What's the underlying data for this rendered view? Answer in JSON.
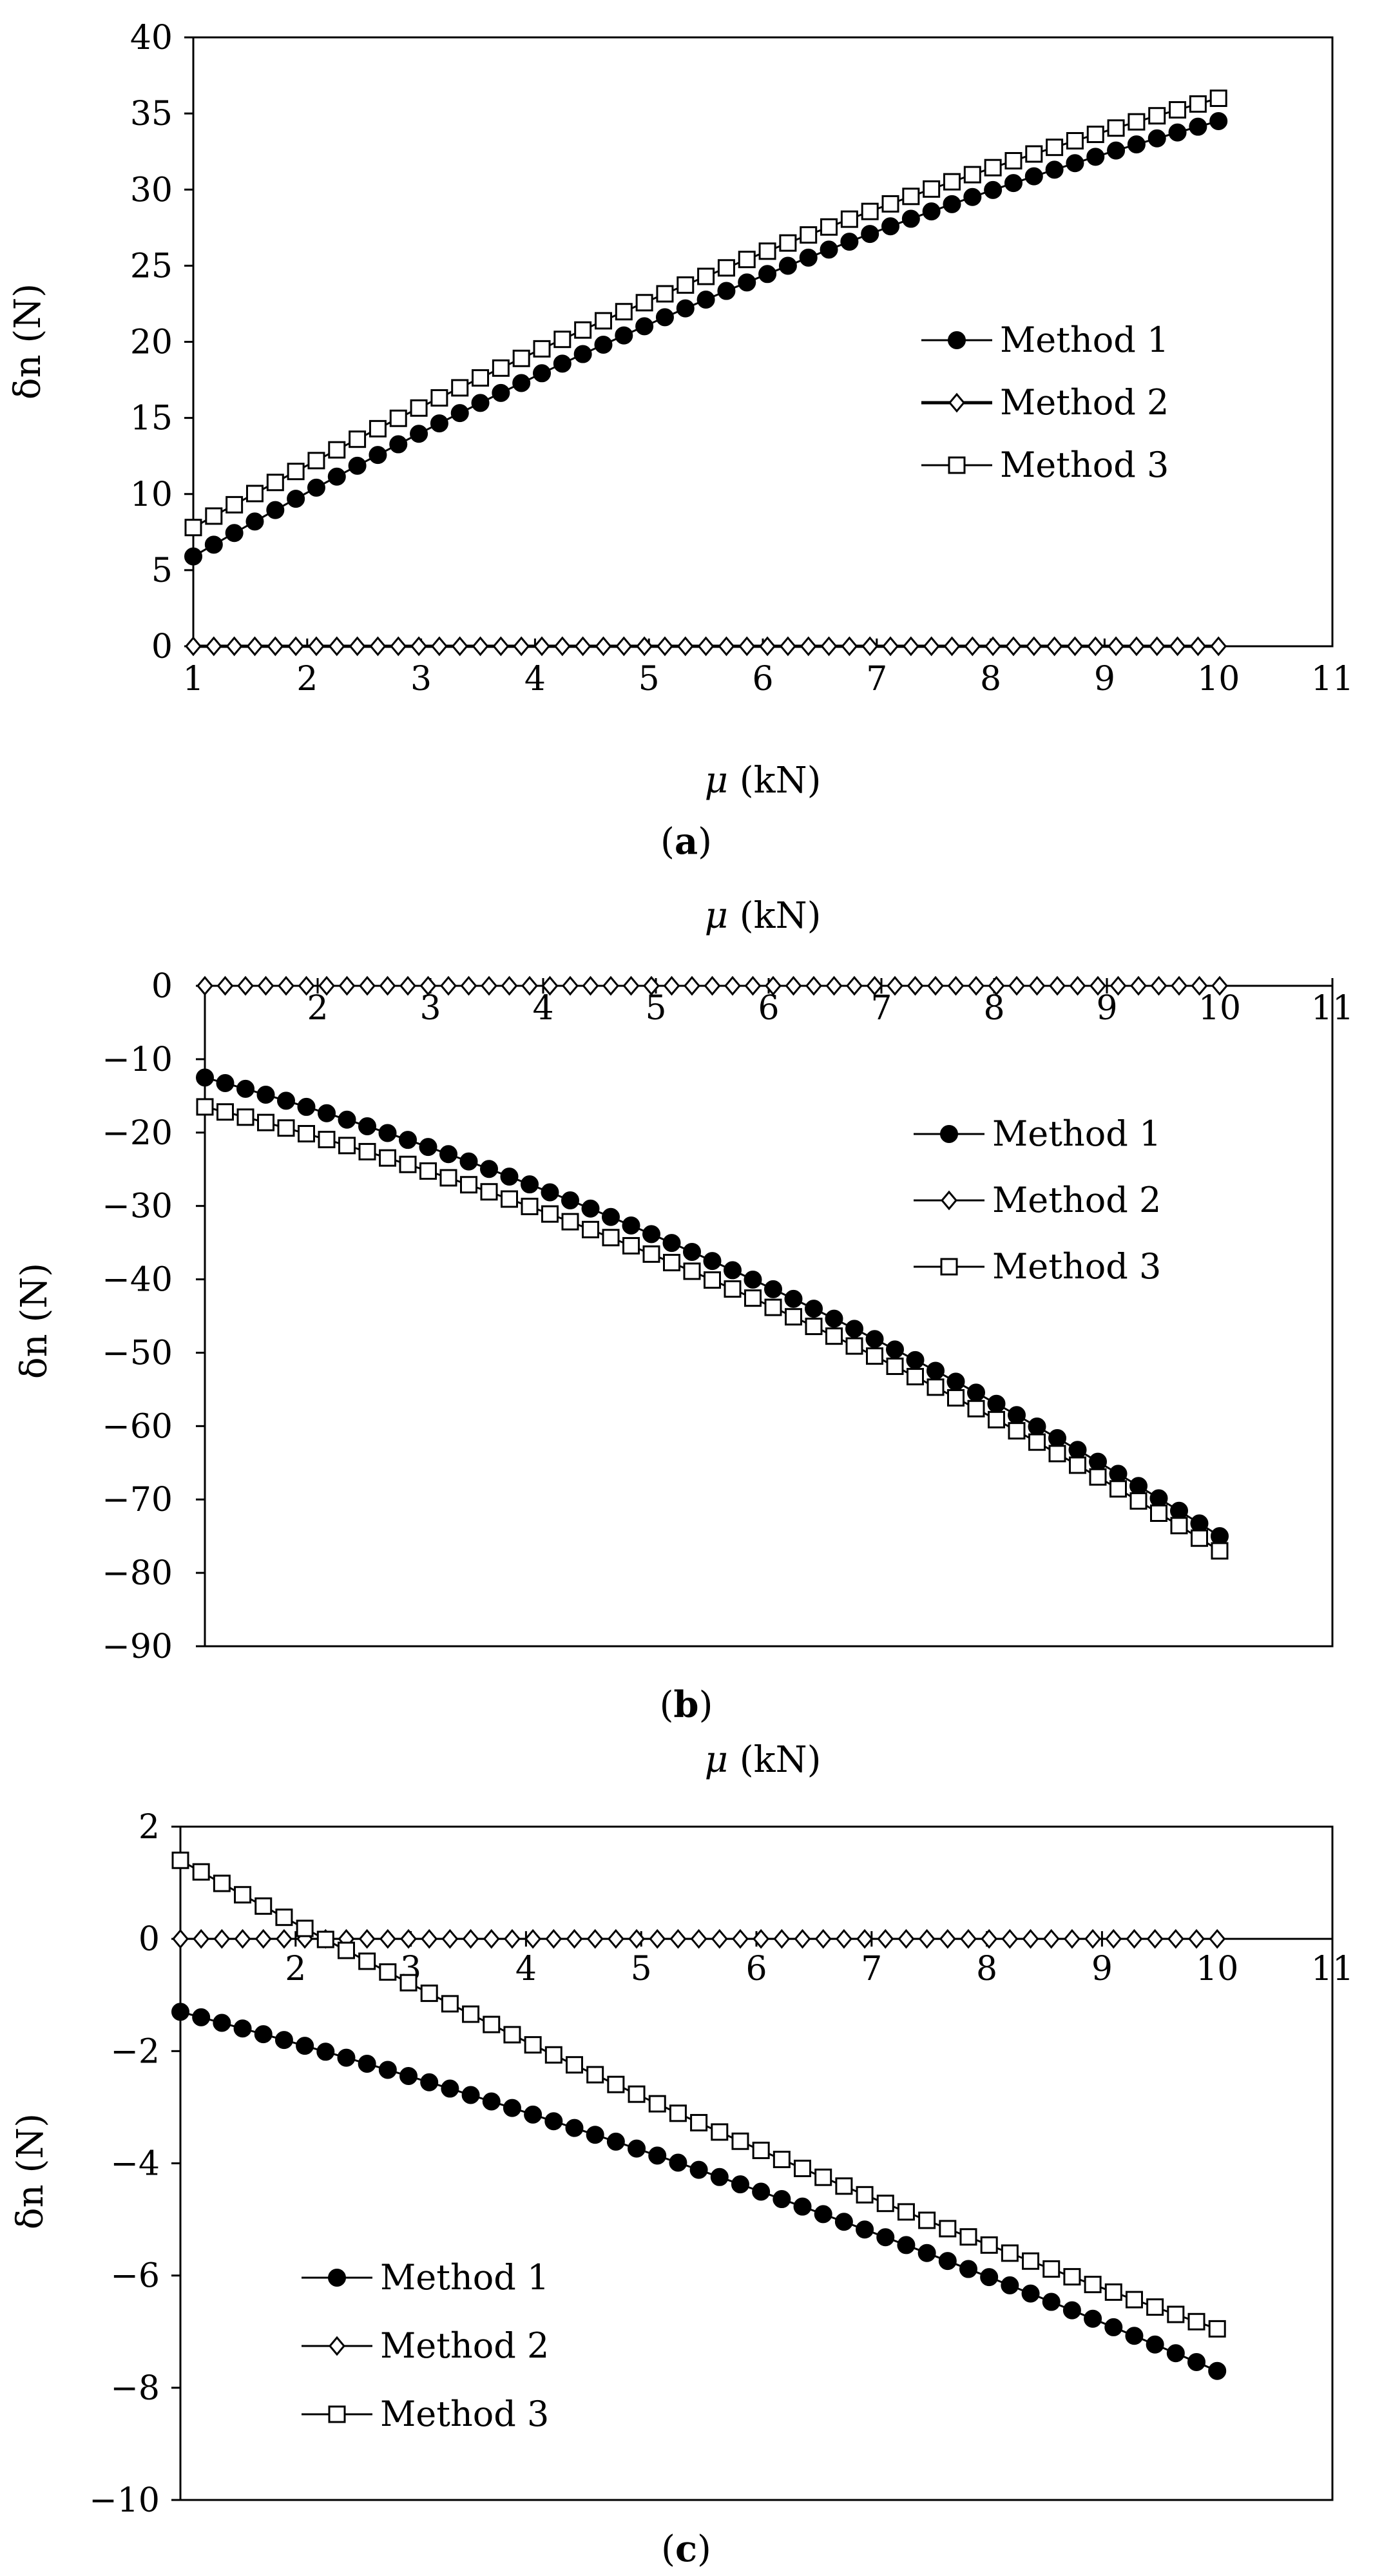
{
  "chart_data": [
    {
      "type": "line",
      "panel": "a",
      "caption_open": "(",
      "caption_letter": "a",
      "caption_close": ")",
      "xlabel_mu": "μ",
      "xlabel_unit": " (kN)",
      "ylabel": "δn (N)",
      "xlim": [
        1,
        11
      ],
      "ylim": [
        0,
        40
      ],
      "xticks": [
        "1",
        "2",
        "3",
        "4",
        "5",
        "6",
        "7",
        "8",
        "9",
        "10",
        "11"
      ],
      "yticks": [
        "0",
        "5",
        "10",
        "15",
        "20",
        "25",
        "30",
        "35",
        "40"
      ],
      "x_axis_position": "bottom",
      "legend_position": "center-right",
      "series": [
        {
          "name": "Method 1",
          "marker": "filled-circle",
          "start": 5.9,
          "end": 34.5,
          "curve": 0.18
        },
        {
          "name": "Method 2",
          "marker": "open-diamond",
          "start": 0,
          "end": 0,
          "curve": 0
        },
        {
          "name": "Method 3",
          "marker": "open-square",
          "start": 7.8,
          "end": 36.0,
          "curve": 0.17
        }
      ]
    },
    {
      "type": "line",
      "panel": "b",
      "caption_open": "(",
      "caption_letter": "b",
      "caption_close": ")",
      "xlabel_mu": "μ",
      "xlabel_unit": " (kN)",
      "ylabel": "δn (N)",
      "xlim": [
        1,
        11
      ],
      "ylim": [
        -90,
        0
      ],
      "xticks": [
        "2",
        "3",
        "4",
        "5",
        "6",
        "7",
        "8",
        "9",
        "10",
        "11"
      ],
      "yticks": [
        "0",
        "-10",
        "-20",
        "-30",
        "-40",
        "-50",
        "-60",
        "-70",
        "-80",
        "-90"
      ],
      "x_axis_position": "top",
      "legend_position": "upper-right",
      "series": [
        {
          "name": "Method 1",
          "marker": "filled-circle",
          "start": -12.5,
          "end": -75.0,
          "curve": -0.2
        },
        {
          "name": "Method 2",
          "marker": "open-diamond",
          "start": 0,
          "end": 0,
          "curve": 0
        },
        {
          "name": "Method 3",
          "marker": "open-square",
          "start": -16.5,
          "end": -77.0,
          "curve": -0.22
        }
      ]
    },
    {
      "type": "line",
      "panel": "c",
      "caption_open": "(",
      "caption_letter": "c",
      "caption_close": ")",
      "xlabel_mu": "μ",
      "xlabel_unit": " (kN)",
      "ylabel": "δn (N)",
      "xlim": [
        1,
        11
      ],
      "ylim": [
        -10,
        2
      ],
      "xticks": [
        "2",
        "3",
        "4",
        "5",
        "6",
        "7",
        "8",
        "9",
        "10",
        "11"
      ],
      "yticks": [
        "2",
        "0",
        "-2",
        "-4",
        "-6",
        "-8",
        "-10"
      ],
      "x_axis_position": "zero",
      "legend_position": "lower-left",
      "series": [
        {
          "name": "Method 1",
          "marker": "filled-circle",
          "start": -1.3,
          "end": -7.7,
          "curve": -0.12
        },
        {
          "name": "Method 2",
          "marker": "open-diamond",
          "start": 0,
          "end": 0,
          "curve": 0
        },
        {
          "name": "Method 3",
          "marker": "open-square",
          "start": 1.4,
          "end": -6.95,
          "curve": 0.12
        }
      ]
    }
  ],
  "points_per_series": 51,
  "x_data_start": 1,
  "x_data_end": 10
}
